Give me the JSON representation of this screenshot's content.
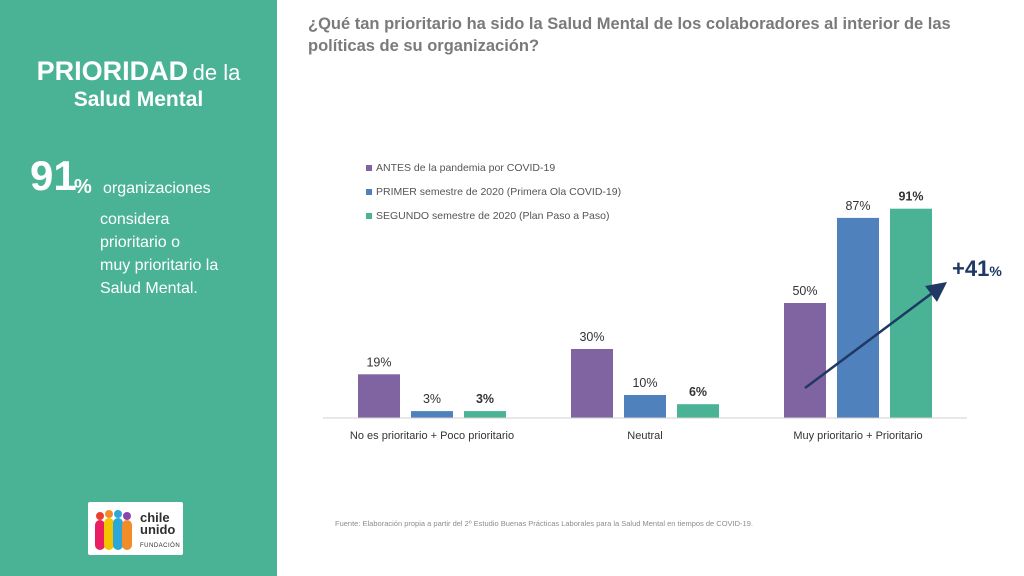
{
  "side": {
    "title_strong": "PRIORIDAD",
    "title_rest": "de la",
    "title_sub": "Salud Mental",
    "stat_value": "91",
    "stat_unit": "%",
    "stat_label": "organizaciones",
    "stat_text": "considera\nprioritario o\nmuy prioritario la\nSalud Mental."
  },
  "logo": {
    "line1": "chile",
    "line2": "unido",
    "tagline": "FUNDACIÓN",
    "colors": [
      "#e8402f",
      "#f28c28",
      "#f5c400",
      "#2ba8d8",
      "#8e44ad",
      "#e91e63"
    ]
  },
  "question": "¿Qué tan prioritario ha sido la Salud Mental de los colaboradores al interior de las políticas de su organización?",
  "source": "Fuente: Elaboración propia a partir del 2º Estudio Buenas Prácticas Laborales para la Salud Mental en tiempos de COVID-19.",
  "chart_data": {
    "type": "bar",
    "categories": [
      "No es prioritario + Poco prioritario",
      "Neutral",
      "Muy prioritario + Prioritario"
    ],
    "series": [
      {
        "name": "ANTES de la pandemia por COVID-19",
        "color": "#8064a2",
        "values": [
          19,
          30,
          50
        ],
        "labels": [
          "19%",
          "30%",
          "50%"
        ]
      },
      {
        "name": "PRIMER semestre de 2020 (Primera Ola COVID-19)",
        "color": "#4f81bd",
        "values": [
          3,
          10,
          87
        ],
        "labels": [
          "3%",
          "10%",
          "87%"
        ]
      },
      {
        "name": "SEGUNDO semestre de 2020 (Plan Paso a Paso)",
        "color": "#4bb395",
        "values": [
          3,
          6,
          91
        ],
        "labels": [
          "3%",
          "6%",
          "91%"
        ]
      }
    ],
    "bold_series": 2,
    "ylim": [
      0,
      100
    ],
    "grid": false,
    "legend": "top-left",
    "annotation": {
      "value": "+41",
      "unit": "%",
      "color": "#1f3864"
    }
  }
}
